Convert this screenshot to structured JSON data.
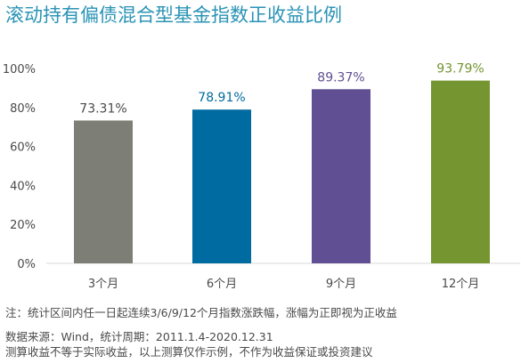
{
  "title": "滚动持有偏债混合型基金指数正收益比例",
  "chart_data": {
    "type": "bar",
    "categories": [
      "3个月",
      "6个月",
      "9个月",
      "12个月"
    ],
    "values": [
      73.31,
      78.91,
      89.37,
      93.79
    ],
    "value_labels": [
      "73.31%",
      "78.91%",
      "89.37%",
      "93.79%"
    ],
    "bar_colors": [
      "#7d7f77",
      "#006ba0",
      "#604f92",
      "#749530"
    ],
    "label_colors": [
      "#4a4a4a",
      "#006ba0",
      "#604f92",
      "#749530"
    ],
    "ylim": [
      0,
      100
    ],
    "yticks": [
      "0%",
      "20%",
      "40%",
      "60%",
      "80%",
      "100%"
    ],
    "grid": false
  },
  "notes": {
    "line1": "注：统计区间内任一日起连续3/6/9/12个月指数涨跌幅，涨幅为正即视为正收益",
    "line2": "数据来源：Wind，统计周期：2011.1.4-2020.12.31",
    "line3": "测算收益不等于实际收益，以上测算仅作示例，不作为收益保证或投资建议"
  }
}
